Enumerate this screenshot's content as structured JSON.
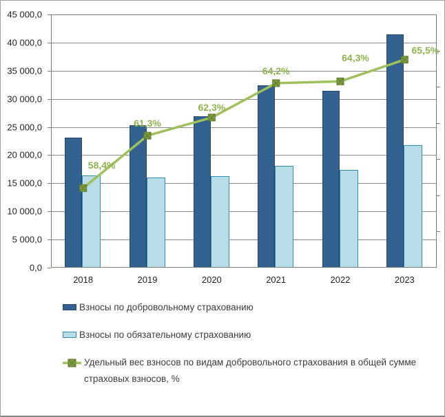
{
  "chart_data": {
    "type": "bar",
    "title": "",
    "categories": [
      "2018",
      "2019",
      "2020",
      "2021",
      "2022",
      "2023"
    ],
    "series": [
      {
        "type": "bar",
        "name": "Взносы по добровольному страхованию",
        "color": "#336190",
        "border_color": "#24466B",
        "values": [
          23100,
          25300,
          26900,
          32400,
          31400,
          41500
        ]
      },
      {
        "type": "bar",
        "name": "Взносы по обязательному страхованию",
        "color": "#B9DDE8",
        "border_color": "#2E8FAD",
        "values": [
          16400,
          16000,
          16300,
          18100,
          17400,
          21800
        ]
      },
      {
        "type": "line",
        "name": "Удельный вес взносов по видам добровольного страхования в общей сумме страховых взносов, %",
        "color": "#9EC15B",
        "marker_color": "#7E9D40",
        "marker_border": "#5E7A2E",
        "label_color": "#8CB34C",
        "values": [
          58.4,
          61.3,
          62.3,
          64.2,
          64.3,
          65.5
        ],
        "point_labels": [
          "58,4%",
          "61,3%",
          "62,3%",
          "64,2%",
          "64,3%",
          "65,5%"
        ]
      }
    ],
    "primary_axis": {
      "min": 0,
      "max": 45000,
      "major_unit": 5000,
      "tick_labels": [
        "0,0",
        "5 000,0",
        "10 000,0",
        "15 000,0",
        "20 000,0",
        "25 000,0",
        "30 000,0",
        "35 000,0",
        "40 000,0",
        "45 000,0"
      ]
    },
    "secondary_axis": {
      "min": 54,
      "max": 68,
      "major_unit": 2,
      "labels_visible": false
    },
    "grid": true,
    "legend_position": "bottom"
  }
}
